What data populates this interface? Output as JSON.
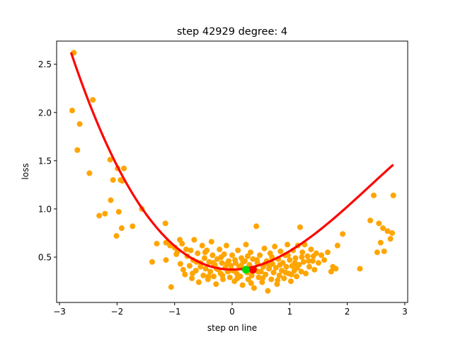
{
  "chart_data": {
    "type": "scatter",
    "title": "step 42929   degree: 4",
    "xlabel": "step on line",
    "ylabel": "loss",
    "xlim": [
      -3.05,
      3.05
    ],
    "ylim": [
      0.03,
      2.74
    ],
    "x_ticks": [
      {
        "value": -3,
        "label": "−3"
      },
      {
        "value": -2,
        "label": "−2"
      },
      {
        "value": -1,
        "label": "−1"
      },
      {
        "value": 0,
        "label": "0"
      },
      {
        "value": 1,
        "label": "1"
      },
      {
        "value": 2,
        "label": "2"
      },
      {
        "value": 3,
        "label": "3"
      }
    ],
    "y_ticks": [
      {
        "value": 0.5,
        "label": "0.5"
      },
      {
        "value": 1.0,
        "label": "1.0"
      },
      {
        "value": 1.5,
        "label": "1.5"
      },
      {
        "value": 2.0,
        "label": "2.0"
      },
      {
        "value": 2.5,
        "label": "2.5"
      }
    ],
    "grid": false,
    "colors": {
      "scatter": "#ffa500",
      "curve": "#ff0000",
      "marker_min": "#ff0000",
      "marker_current": "#00dd00"
    },
    "series": [
      {
        "kind": "scatter",
        "points": [
          [
            -2.75,
            2.62
          ],
          [
            -2.78,
            2.02
          ],
          [
            -2.65,
            1.88
          ],
          [
            -2.69,
            1.61
          ],
          [
            -2.42,
            2.13
          ],
          [
            -2.48,
            1.37
          ],
          [
            -2.31,
            0.93
          ],
          [
            -2.21,
            0.95
          ],
          [
            -2.12,
            1.51
          ],
          [
            -2.11,
            1.09
          ],
          [
            -2.07,
            1.3
          ],
          [
            -2.01,
            0.72
          ],
          [
            -1.99,
            1.42
          ],
          [
            -1.97,
            0.97
          ],
          [
            -1.94,
            1.3
          ],
          [
            -1.91,
            1.29
          ],
          [
            -1.88,
            1.42
          ],
          [
            -1.92,
            0.8
          ],
          [
            -1.73,
            0.82
          ],
          [
            -1.57,
            1.0
          ],
          [
            -1.39,
            0.45
          ],
          [
            -1.31,
            0.64
          ],
          [
            -1.16,
            0.85
          ],
          [
            -1.15,
            0.47
          ],
          [
            -1.15,
            0.65
          ],
          [
            -1.06,
            0.19
          ],
          [
            -1.0,
            0.6
          ],
          [
            -0.97,
            0.53
          ],
          [
            -0.91,
            0.68
          ],
          [
            -0.9,
            0.43
          ],
          [
            -0.87,
            0.64
          ],
          [
            -0.85,
            0.37
          ],
          [
            -0.82,
            0.32
          ],
          [
            -0.78,
            0.51
          ],
          [
            -0.74,
            0.41
          ],
          [
            -0.72,
            0.57
          ],
          [
            -0.7,
            0.28
          ],
          [
            -0.68,
            0.47
          ],
          [
            -0.66,
            0.68
          ],
          [
            -0.63,
            0.36
          ],
          [
            -0.6,
            0.54
          ],
          [
            -0.58,
            0.24
          ],
          [
            -0.55,
            0.44
          ],
          [
            -0.52,
            0.62
          ],
          [
            -0.5,
            0.31
          ],
          [
            -0.48,
            0.49
          ],
          [
            -0.46,
            0.38
          ],
          [
            -0.44,
            0.57
          ],
          [
            -0.42,
            0.27
          ],
          [
            -0.4,
            0.45
          ],
          [
            -0.38,
            0.35
          ],
          [
            -0.36,
            0.66
          ],
          [
            -0.34,
            0.52
          ],
          [
            -0.32,
            0.3
          ],
          [
            -0.3,
            0.42
          ],
          [
            -0.28,
            0.22
          ],
          [
            -0.26,
            0.48
          ],
          [
            -0.24,
            0.37
          ],
          [
            -0.22,
            0.58
          ],
          [
            -0.2,
            0.33
          ],
          [
            -0.18,
            0.44
          ],
          [
            -0.16,
            0.27
          ],
          [
            -0.14,
            0.53
          ],
          [
            -0.12,
            0.39
          ],
          [
            -0.1,
            0.62
          ],
          [
            -0.08,
            0.35
          ],
          [
            -0.06,
            0.46
          ],
          [
            -0.04,
            0.29
          ],
          [
            -0.02,
            0.41
          ],
          [
            0.0,
            0.52
          ],
          [
            0.02,
            0.36
          ],
          [
            0.04,
            0.25
          ],
          [
            0.06,
            0.44
          ],
          [
            0.08,
            0.33
          ],
          [
            0.1,
            0.57
          ],
          [
            0.12,
            0.4
          ],
          [
            0.14,
            0.3
          ],
          [
            0.16,
            0.49
          ],
          [
            0.18,
            0.21
          ],
          [
            0.2,
            0.38
          ],
          [
            0.22,
            0.46
          ],
          [
            0.24,
            0.63
          ],
          [
            0.26,
            0.34
          ],
          [
            0.28,
            0.27
          ],
          [
            0.3,
            0.42
          ],
          [
            0.32,
            0.55
          ],
          [
            0.34,
            0.31
          ],
          [
            0.36,
            0.48
          ],
          [
            0.38,
            0.18
          ],
          [
            0.4,
            0.37
          ],
          [
            0.42,
            0.82
          ],
          [
            0.44,
            0.44
          ],
          [
            0.46,
            0.29
          ],
          [
            0.48,
            0.52
          ],
          [
            0.5,
            0.35
          ],
          [
            0.52,
            0.24
          ],
          [
            0.54,
            0.4
          ],
          [
            0.56,
            0.59
          ],
          [
            0.58,
            0.32
          ],
          [
            0.6,
            0.46
          ],
          [
            0.62,
            0.15
          ],
          [
            0.64,
            0.38
          ],
          [
            0.66,
            0.54
          ],
          [
            0.68,
            0.27
          ],
          [
            0.7,
            0.43
          ],
          [
            0.72,
            0.34
          ],
          [
            0.74,
            0.61
          ],
          [
            0.76,
            0.39
          ],
          [
            0.78,
            0.22
          ],
          [
            0.8,
            0.48
          ],
          [
            0.82,
            0.31
          ],
          [
            0.84,
            0.56
          ],
          [
            0.86,
            0.36
          ],
          [
            0.88,
            0.44
          ],
          [
            0.9,
            0.28
          ],
          [
            0.92,
            0.52
          ],
          [
            0.94,
            0.4
          ],
          [
            0.96,
            0.63
          ],
          [
            0.98,
            0.33
          ],
          [
            1.0,
            0.47
          ],
          [
            1.02,
            0.25
          ],
          [
            1.04,
            0.41
          ],
          [
            1.06,
            0.57
          ],
          [
            1.08,
            0.36
          ],
          [
            1.1,
            0.49
          ],
          [
            1.12,
            0.3
          ],
          [
            1.14,
            0.62
          ],
          [
            1.16,
            0.42
          ],
          [
            1.18,
            0.81
          ],
          [
            1.2,
            0.35
          ],
          [
            1.22,
            0.55
          ],
          [
            1.24,
            0.45
          ],
          [
            1.26,
            0.63
          ],
          [
            1.28,
            0.33
          ],
          [
            1.31,
            0.51
          ],
          [
            1.34,
            0.4
          ],
          [
            1.37,
            0.58
          ],
          [
            1.4,
            0.46
          ],
          [
            1.43,
            0.37
          ],
          [
            1.46,
            0.54
          ],
          [
            1.5,
            0.44
          ],
          [
            1.55,
            0.52
          ],
          [
            1.6,
            0.47
          ],
          [
            1.66,
            0.55
          ],
          [
            1.72,
            0.35
          ],
          [
            1.75,
            0.4
          ],
          [
            1.8,
            0.38
          ],
          [
            1.83,
            0.62
          ],
          [
            1.92,
            0.74
          ],
          [
            2.22,
            0.38
          ],
          [
            2.4,
            0.88
          ],
          [
            2.46,
            1.14
          ],
          [
            2.52,
            0.55
          ],
          [
            2.55,
            0.85
          ],
          [
            2.58,
            0.65
          ],
          [
            2.62,
            0.8
          ],
          [
            2.64,
            0.56
          ],
          [
            2.7,
            0.77
          ],
          [
            2.75,
            0.69
          ],
          [
            2.78,
            0.75
          ],
          [
            2.8,
            1.14
          ],
          [
            -0.95,
            0.56
          ],
          [
            -0.8,
            0.58
          ],
          [
            -0.62,
            0.45
          ],
          [
            -0.47,
            0.55
          ],
          [
            -0.33,
            0.44
          ],
          [
            -0.19,
            0.5
          ],
          [
            -0.09,
            0.43
          ],
          [
            0.05,
            0.47
          ],
          [
            0.15,
            0.41
          ],
          [
            0.27,
            0.51
          ],
          [
            0.43,
            0.47
          ],
          [
            0.57,
            0.43
          ],
          [
            0.69,
            0.5
          ],
          [
            0.83,
            0.42
          ],
          [
            0.97,
            0.52
          ],
          [
            1.09,
            0.44
          ],
          [
            1.21,
            0.5
          ],
          [
            1.33,
            0.46
          ],
          [
            -0.69,
            0.33
          ],
          [
            -0.41,
            0.3
          ],
          [
            -0.17,
            0.31
          ],
          [
            0.09,
            0.28
          ],
          [
            0.33,
            0.23
          ],
          [
            0.53,
            0.28
          ],
          [
            0.79,
            0.26
          ],
          [
            1.03,
            0.32
          ],
          [
            -0.27,
            0.38
          ],
          [
            0.19,
            0.45
          ],
          [
            0.65,
            0.41
          ],
          [
            1.13,
            0.39
          ],
          [
            -0.55,
            0.4
          ],
          [
            -0.05,
            0.36
          ],
          [
            0.45,
            0.35
          ],
          [
            0.93,
            0.34
          ],
          [
            1.41,
            0.51
          ],
          [
            -1.08,
            0.62
          ]
        ]
      },
      {
        "kind": "line",
        "name": "",
        "polynomial_coefficients": [
          0.3709,
          0.0,
          0.2193,
          -0.0265,
          -0.0008
        ],
        "x_from": -2.8,
        "x_to": 2.8
      },
      {
        "kind": "marker",
        "points": [
          [
            0.36,
            0.37
          ]
        ],
        "color_key": "marker_min"
      },
      {
        "kind": "marker",
        "points": [
          [
            0.24,
            0.37
          ]
        ],
        "color_key": "marker_current"
      }
    ]
  }
}
